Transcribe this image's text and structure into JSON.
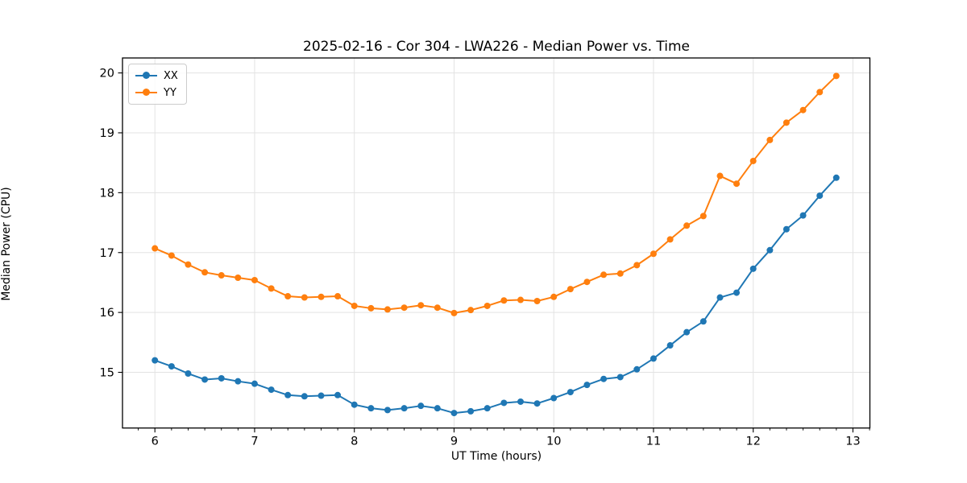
{
  "chart_data": {
    "type": "line",
    "title": "2025-02-16 - Cor 304 - LWA226 - Median Power vs. Time",
    "xlabel": "UT Time (hours)",
    "ylabel": "Median Power (CPU)",
    "xlim": [
      5.675,
      13.17
    ],
    "ylim": [
      14.07,
      20.25
    ],
    "x_ticks": [
      6,
      7,
      8,
      9,
      10,
      11,
      12,
      13
    ],
    "y_ticks": [
      15,
      16,
      17,
      18,
      19,
      20
    ],
    "x_minor_step_hours": 0.16667,
    "grid": true,
    "legend_position": "upper-left",
    "x": [
      6.0,
      6.167,
      6.333,
      6.5,
      6.667,
      6.833,
      7.0,
      7.167,
      7.333,
      7.5,
      7.667,
      7.833,
      8.0,
      8.167,
      8.333,
      8.5,
      8.667,
      8.833,
      9.0,
      9.167,
      9.333,
      9.5,
      9.667,
      9.833,
      10.0,
      10.167,
      10.333,
      10.5,
      10.667,
      10.833,
      11.0,
      11.167,
      11.333,
      11.5,
      11.667,
      11.833,
      12.0,
      12.167,
      12.333,
      12.5,
      12.667,
      12.833
    ],
    "series": [
      {
        "name": "XX",
        "color": "#1f77b4",
        "values": [
          15.2,
          15.1,
          14.98,
          14.88,
          14.9,
          14.85,
          14.81,
          14.71,
          14.62,
          14.6,
          14.61,
          14.62,
          14.46,
          14.4,
          14.37,
          14.4,
          14.44,
          14.4,
          14.32,
          14.35,
          14.4,
          14.49,
          14.51,
          14.48,
          14.57,
          14.67,
          14.79,
          14.89,
          14.92,
          15.05,
          15.23,
          15.45,
          15.67,
          15.85,
          16.25,
          16.33,
          16.73,
          17.04,
          17.39,
          17.62,
          17.95,
          18.25
        ]
      },
      {
        "name": "YY",
        "color": "#ff7f0e",
        "values": [
          17.07,
          16.95,
          16.8,
          16.67,
          16.62,
          16.58,
          16.54,
          16.4,
          16.27,
          16.25,
          16.26,
          16.27,
          16.11,
          16.07,
          16.05,
          16.08,
          16.12,
          16.08,
          15.99,
          16.04,
          16.11,
          16.2,
          16.21,
          16.19,
          16.26,
          16.39,
          16.51,
          16.63,
          16.65,
          16.79,
          16.98,
          17.22,
          17.45,
          17.61,
          18.28,
          18.15,
          18.53,
          18.88,
          19.17,
          19.38,
          19.68,
          19.95
        ]
      }
    ]
  }
}
